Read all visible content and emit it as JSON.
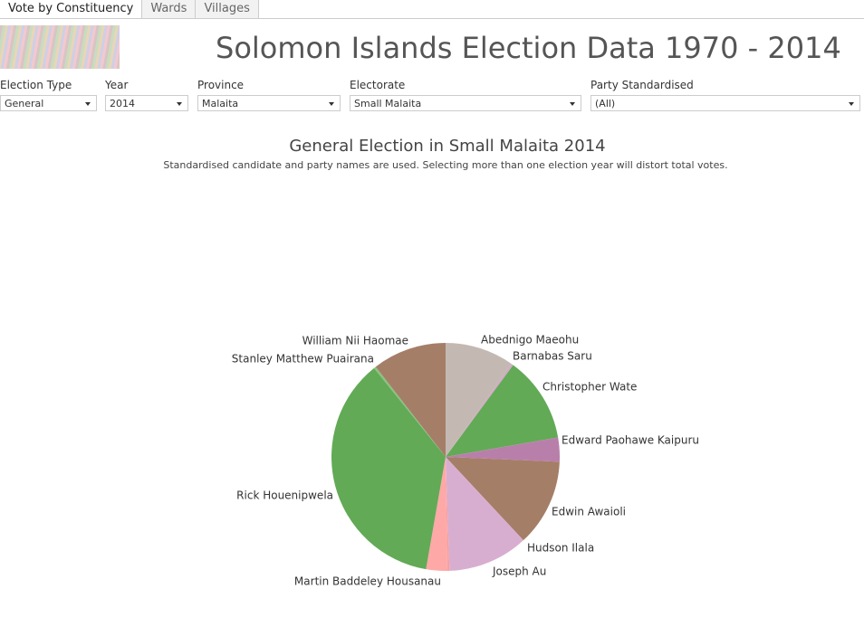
{
  "tabs": [
    "Vote by Constituency",
    "Wards",
    "Villages"
  ],
  "header": {
    "title": "Solomon Islands Election Data 1970  - 2014"
  },
  "filters": [
    {
      "label": "Election Type",
      "value": "General"
    },
    {
      "label": "Year",
      "value": "2014"
    },
    {
      "label": "Province",
      "value": "Malaita"
    },
    {
      "label": "Electorate",
      "value": "Small Malaita"
    },
    {
      "label": "Party Standardised",
      "value": "(All)"
    }
  ],
  "chart_data": {
    "type": "pie",
    "title": "General Election  in Small Malaita 2014",
    "subtitle": "Standardised candidate and party names are used. Selecting more than one election year will distort total votes.",
    "categories": [
      "Abednigo Maeohu",
      "Barnabas Saru",
      "Christopher Wate",
      "Edward Paohawe Kaipuru",
      "Edwin Awaioli",
      "Hudson Ilala",
      "Joseph Au",
      "Martin Baddeley Housanau",
      "Rick Houenipwela",
      "Stanley Matthew Puairana",
      "William Nii Haomae"
    ],
    "values": [
      9.8,
      0.3,
      12.2,
      3.4,
      12.4,
      11.4,
      0.3,
      3.0,
      36.5,
      0.3,
      10.5
    ],
    "colors": [
      "#c3b9b2",
      "#d4a6c8",
      "#62aa56",
      "#b97fab",
      "#a57e68",
      "#d8aed0",
      "#f7a0a0",
      "#ffa8a8",
      "#62aa56",
      "#8ac17e",
      "#a57e68"
    ]
  }
}
